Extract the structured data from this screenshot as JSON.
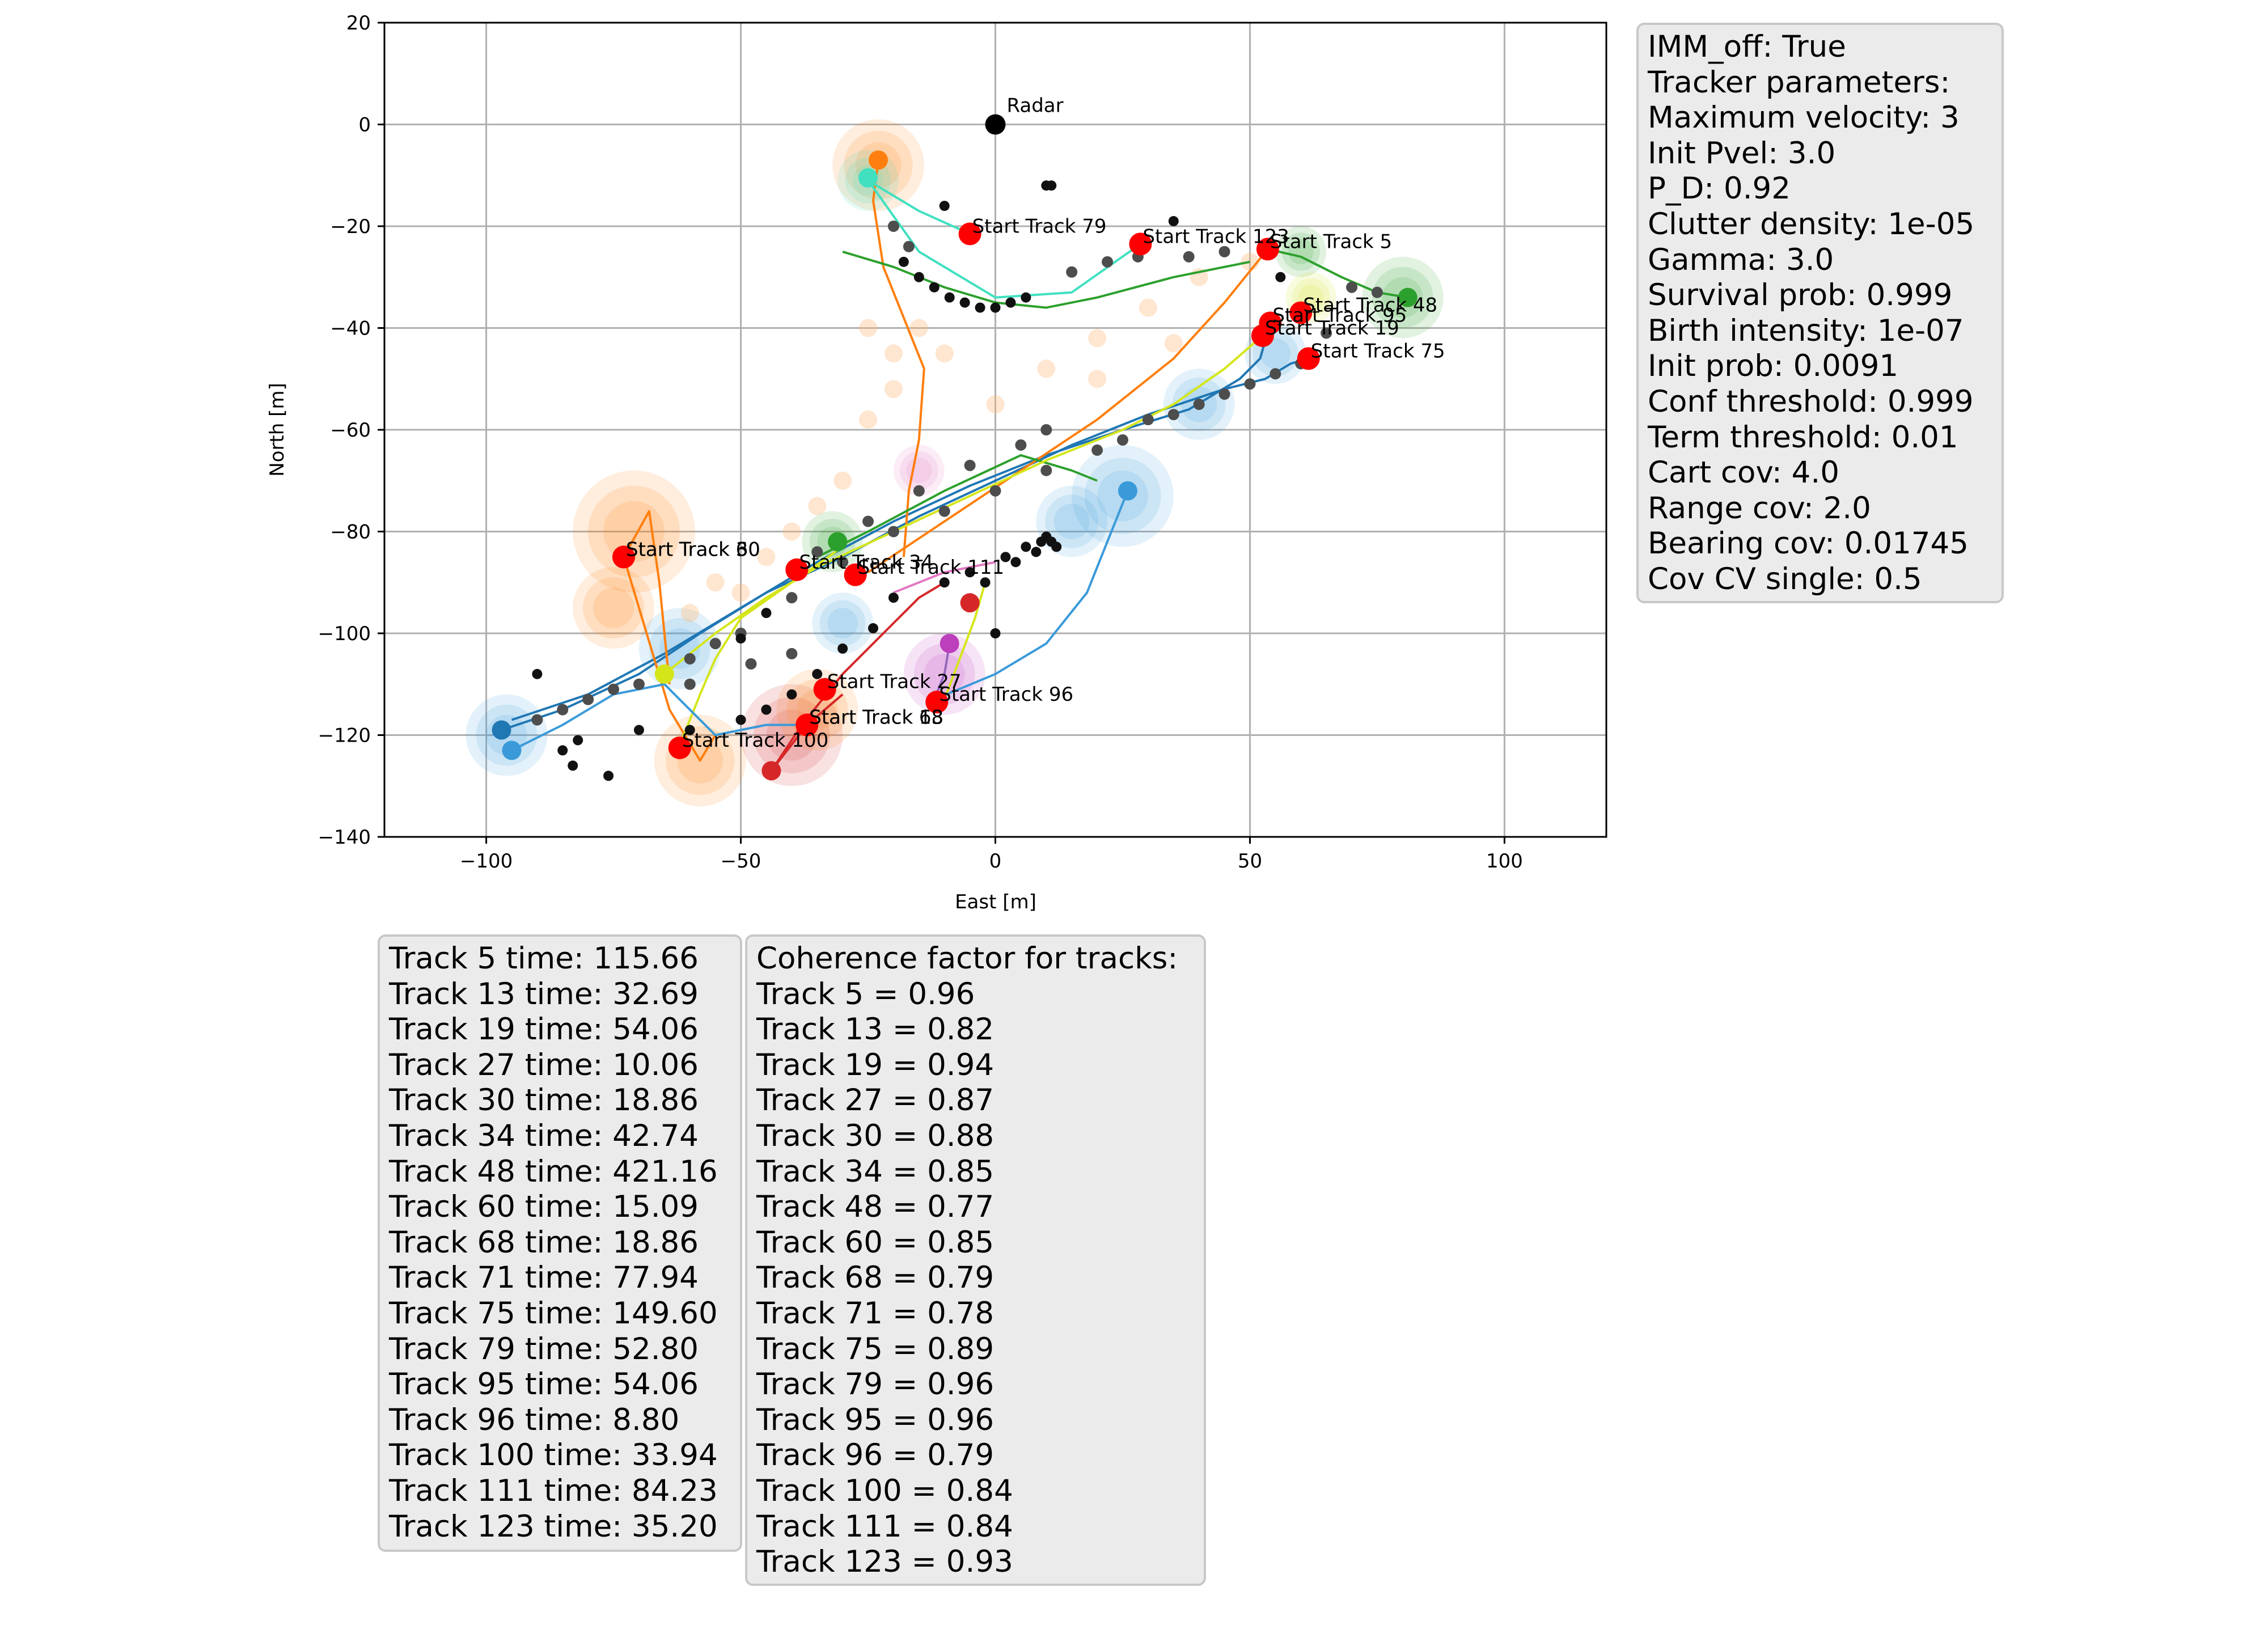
{
  "chart_data": {
    "type": "scatter",
    "title": "",
    "xlabel": "East [m]",
    "ylabel": "North [m]",
    "xlim": [
      -120,
      120
    ],
    "ylim": [
      -140,
      20
    ],
    "grid": true,
    "xticks": [
      -100,
      -50,
      0,
      50,
      100
    ],
    "yticks": [
      20,
      0,
      -20,
      -40,
      -60,
      -80,
      -100,
      -120,
      -140
    ],
    "xtick_labels": [
      "−100",
      "−50",
      "0",
      "50",
      "100"
    ],
    "ytick_labels": [
      "20",
      "0",
      "−20",
      "−40",
      "−60",
      "−80",
      "−100",
      "−120",
      "−140"
    ],
    "radar": {
      "label": "Radar",
      "x": 0,
      "y": 0,
      "color": "#000000"
    },
    "start_markers": [
      {
        "label": "Start Track 79",
        "x": -5,
        "y": -21.5
      },
      {
        "label": "Start Track 123",
        "x": 28.5,
        "y": -23.5
      },
      {
        "label": "Start Track 5",
        "x": 53.5,
        "y": -24.5
      },
      {
        "label": "Start Track 48",
        "x": 60,
        "y": -37
      },
      {
        "label": "Start Track 95",
        "x": 54,
        "y": -39
      },
      {
        "label": "Start Track 19",
        "x": 52.5,
        "y": -41.5
      },
      {
        "label": "Start Track 75",
        "x": 61.5,
        "y": -46
      },
      {
        "label": "Start Track 60",
        "x": -73,
        "y": -85
      },
      {
        "label": "Start Track 30",
        "x": -73,
        "y": -85
      },
      {
        "label": "Start Track 34",
        "x": -39,
        "y": -87.5
      },
      {
        "label": "Start Track 111",
        "x": -27.5,
        "y": -88.5
      },
      {
        "label": "Start Track 27",
        "x": -33.5,
        "y": -111
      },
      {
        "label": "Start Track 96",
        "x": -11.5,
        "y": -113.5
      },
      {
        "label": "Start Track 13",
        "x": -37,
        "y": -118
      },
      {
        "label": "Start Track 68",
        "x": -37,
        "y": -118
      },
      {
        "label": "Start Track 100",
        "x": -62,
        "y": -122.5
      }
    ],
    "tracks": [
      {
        "color": "#1f77b4",
        "points": [
          [
            -97,
            -119
          ],
          [
            -85,
            -115
          ],
          [
            -70,
            -108
          ],
          [
            -58,
            -100
          ],
          [
            -45,
            -92
          ],
          [
            -30,
            -85
          ],
          [
            -15,
            -77
          ],
          [
            0,
            -70
          ],
          [
            15,
            -63
          ],
          [
            30,
            -57
          ],
          [
            45,
            -52
          ],
          [
            53,
            -50
          ],
          [
            58,
            -47
          ],
          [
            61.5,
            -46
          ]
        ]
      },
      {
        "color": "#1f77b4",
        "points": [
          [
            -95,
            -117
          ],
          [
            -80,
            -112
          ],
          [
            -65,
            -104
          ],
          [
            -50,
            -95
          ],
          [
            -35,
            -86
          ],
          [
            -20,
            -78
          ],
          [
            -5,
            -71
          ],
          [
            10,
            -65
          ],
          [
            25,
            -60
          ],
          [
            38,
            -56
          ],
          [
            48,
            -50
          ],
          [
            52,
            -46
          ],
          [
            54,
            -39
          ]
        ]
      },
      {
        "color": "#ff7f0e",
        "points": [
          [
            -23,
            -7
          ],
          [
            -24,
            -15
          ],
          [
            -22,
            -28
          ],
          [
            -18,
            -38
          ],
          [
            -14,
            -48
          ],
          [
            -15,
            -62
          ],
          [
            -17,
            -72
          ],
          [
            -18,
            -85
          ]
        ]
      },
      {
        "color": "#ff7f0e",
        "points": [
          [
            -25,
            -88
          ],
          [
            -10,
            -78
          ],
          [
            5,
            -68
          ],
          [
            20,
            -58
          ],
          [
            35,
            -46
          ],
          [
            45,
            -35
          ],
          [
            53.5,
            -24.5
          ]
        ]
      },
      {
        "color": "#ff7f0e",
        "points": [
          [
            -73,
            -85
          ],
          [
            -70,
            -95
          ],
          [
            -67,
            -105
          ],
          [
            -64,
            -115
          ],
          [
            -58,
            -125
          ],
          [
            -55,
            -120
          ]
        ]
      },
      {
        "color": "#ff7f0e",
        "points": [
          [
            -73,
            -85
          ],
          [
            -68,
            -76
          ],
          [
            -66,
            -90
          ],
          [
            -64,
            -110
          ]
        ]
      },
      {
        "color": "#2ca02c",
        "points": [
          [
            53.5,
            -24.5
          ],
          [
            60,
            -26
          ],
          [
            68,
            -30
          ],
          [
            75,
            -33
          ],
          [
            81,
            -34
          ]
        ]
      },
      {
        "color": "#2ca02c",
        "points": [
          [
            -30,
            -25
          ],
          [
            -20,
            -28
          ],
          [
            -10,
            -32
          ],
          [
            0,
            -35
          ],
          [
            10,
            -36
          ],
          [
            20,
            -34
          ],
          [
            35,
            -30
          ],
          [
            50,
            -27
          ]
        ]
      },
      {
        "color": "#2ca02c",
        "points": [
          [
            -35,
            -85
          ],
          [
            -25,
            -80
          ],
          [
            -10,
            -72
          ],
          [
            5,
            -65
          ],
          [
            15,
            -68
          ],
          [
            20,
            -70
          ]
        ]
      },
      {
        "color": "#d62728",
        "points": [
          [
            -44,
            -127
          ],
          [
            -38,
            -118
          ],
          [
            -30,
            -108
          ],
          [
            -20,
            -98
          ],
          [
            -15,
            -93
          ],
          [
            -10,
            -90
          ]
        ]
      },
      {
        "color": "#d62728",
        "points": [
          [
            -44,
            -127
          ],
          [
            -37,
            -118
          ],
          [
            -30,
            -112
          ]
        ]
      },
      {
        "color": "#9467bd",
        "points": [
          [
            -12,
            -113
          ],
          [
            -10,
            -108
          ],
          [
            -9,
            -102
          ]
        ]
      },
      {
        "color": "#d4e61a",
        "points": [
          [
            -65,
            -108
          ],
          [
            -55,
            -100
          ],
          [
            -45,
            -93
          ],
          [
            -35,
            -87
          ],
          [
            -20,
            -80
          ],
          [
            -5,
            -73
          ],
          [
            10,
            -66
          ],
          [
            25,
            -60
          ],
          [
            35,
            -55
          ],
          [
            45,
            -48
          ],
          [
            52.5,
            -41.5
          ]
        ]
      },
      {
        "color": "#d4e61a",
        "points": [
          [
            -62,
            -122
          ],
          [
            -58,
            -112
          ],
          [
            -55,
            -105
          ],
          [
            -50,
            -97
          ],
          [
            -40,
            -90
          ],
          [
            -30,
            -83
          ]
        ]
      },
      {
        "color": "#d4e61a",
        "points": [
          [
            -10,
            -113
          ],
          [
            -7,
            -105
          ],
          [
            -4,
            -97
          ],
          [
            -2,
            -90
          ]
        ]
      },
      {
        "color": "#40e0c0",
        "points": [
          [
            -5,
            -21.5
          ],
          [
            -15,
            -17
          ],
          [
            -25,
            -11
          ],
          [
            -15,
            -25
          ],
          [
            0,
            -34
          ],
          [
            15,
            -33
          ],
          [
            28.5,
            -23.5
          ]
        ]
      },
      {
        "color": "#3a9ad9",
        "points": [
          [
            -12,
            -113
          ],
          [
            0,
            -108
          ],
          [
            10,
            -102
          ],
          [
            18,
            -92
          ],
          [
            22,
            -82
          ],
          [
            26,
            -72
          ]
        ]
      },
      {
        "color": "#3a9ad9",
        "points": [
          [
            -95,
            -123
          ],
          [
            -85,
            -118
          ],
          [
            -75,
            -112
          ],
          [
            -65,
            -110
          ],
          [
            -55,
            -120
          ],
          [
            -45,
            -118
          ],
          [
            -37,
            -118
          ]
        ]
      },
      {
        "color": "#e377c2",
        "points": [
          [
            -20,
            -92
          ],
          [
            -10,
            -88
          ],
          [
            0,
            -86
          ]
        ]
      }
    ],
    "track_endpoints": [
      {
        "x": -23,
        "y": -7,
        "color": "#ff7f0e"
      },
      {
        "x": -25,
        "y": -10.5,
        "color": "#40e0c0"
      },
      {
        "x": 81,
        "y": -34,
        "color": "#2ca02c"
      },
      {
        "x": 26,
        "y": -72,
        "color": "#3a9ad9"
      },
      {
        "x": -9,
        "y": -102,
        "color": "#bc3fbc"
      },
      {
        "x": -97,
        "y": -119,
        "color": "#1f77b4"
      },
      {
        "x": -95,
        "y": -123,
        "color": "#3a9ad9"
      },
      {
        "x": -44,
        "y": -127,
        "color": "#d62728"
      },
      {
        "x": -5,
        "y": -94,
        "color": "#d62728"
      },
      {
        "x": -31,
        "y": -82,
        "color": "#2ca02c"
      },
      {
        "x": -65,
        "y": -108,
        "color": "#d4e61a"
      }
    ],
    "uncertainty_regions": [
      {
        "x": -23,
        "y": -8,
        "r": 9,
        "color": "#ff7f0e"
      },
      {
        "x": -25,
        "y": -11,
        "r": 6,
        "color": "#40e0c0"
      },
      {
        "x": 80,
        "y": -34,
        "r": 8,
        "color": "#2ca02c"
      },
      {
        "x": 60,
        "y": -25,
        "r": 5,
        "color": "#2ca02c"
      },
      {
        "x": -71,
        "y": -80,
        "r": 12,
        "color": "#ff7f0e"
      },
      {
        "x": -75,
        "y": -95,
        "r": 8,
        "color": "#ff7f0e"
      },
      {
        "x": -96,
        "y": -120,
        "r": 8,
        "color": "#3a9ad9"
      },
      {
        "x": -62,
        "y": -103,
        "r": 8,
        "color": "#3a9ad9"
      },
      {
        "x": -40,
        "y": -120,
        "r": 10,
        "color": "#d62728"
      },
      {
        "x": -58,
        "y": -125,
        "r": 9,
        "color": "#ff7f0e"
      },
      {
        "x": -10,
        "y": -108,
        "r": 8,
        "color": "#bc3fbc"
      },
      {
        "x": 25,
        "y": -73,
        "r": 10,
        "color": "#3a9ad9"
      },
      {
        "x": 15,
        "y": -78,
        "r": 7,
        "color": "#3a9ad9"
      },
      {
        "x": -32,
        "y": -82,
        "r": 6,
        "color": "#2ca02c"
      },
      {
        "x": -15,
        "y": -68,
        "r": 5,
        "color": "#e377c2"
      },
      {
        "x": 40,
        "y": -55,
        "r": 7,
        "color": "#3a9ad9"
      },
      {
        "x": 55,
        "y": -45,
        "r": 6,
        "color": "#3a9ad9"
      },
      {
        "x": -35,
        "y": -115,
        "r": 8,
        "color": "#ff7f0e"
      },
      {
        "x": -30,
        "y": -98,
        "r": 6,
        "color": "#3a9ad9"
      },
      {
        "x": 62,
        "y": -34,
        "r": 5,
        "color": "#d4e61a"
      }
    ],
    "measurements_black": [
      [
        -18,
        -27
      ],
      [
        -15,
        -30
      ],
      [
        -12,
        -32
      ],
      [
        -9,
        -34
      ],
      [
        -6,
        -35
      ],
      [
        -3,
        -36
      ],
      [
        0,
        -36
      ],
      [
        3,
        -35
      ],
      [
        6,
        -34
      ],
      [
        10,
        -12
      ],
      [
        11,
        -12
      ],
      [
        -10,
        -16
      ],
      [
        35,
        -19
      ],
      [
        56,
        -30
      ],
      [
        -10,
        -90
      ],
      [
        -5,
        -88
      ],
      [
        2,
        -85
      ],
      [
        6,
        -83
      ],
      [
        9,
        -82
      ],
      [
        10,
        -81
      ],
      [
        11,
        -82
      ],
      [
        12,
        -83
      ],
      [
        8,
        -84
      ],
      [
        4,
        -86
      ],
      [
        -2,
        -90
      ],
      [
        -20,
        -93
      ],
      [
        -24,
        -99
      ],
      [
        -30,
        -103
      ],
      [
        -35,
        -108
      ],
      [
        -40,
        -112
      ],
      [
        -45,
        -115
      ],
      [
        -50,
        -117
      ],
      [
        -60,
        -119
      ],
      [
        -70,
        -119
      ],
      [
        -82,
        -121
      ],
      [
        -85,
        -123
      ],
      [
        -83,
        -126
      ],
      [
        -76,
        -128
      ],
      [
        -50,
        -101
      ],
      [
        -45,
        -96
      ],
      [
        -90,
        -108
      ],
      [
        0,
        -100
      ]
    ],
    "measurements_gray": [
      [
        -20,
        -20
      ],
      [
        -17,
        -24
      ],
      [
        15,
        -29
      ],
      [
        22,
        -27
      ],
      [
        28,
        -26
      ],
      [
        38,
        -26
      ],
      [
        45,
        -25
      ],
      [
        70,
        -32
      ],
      [
        75,
        -33
      ],
      [
        30,
        -58
      ],
      [
        35,
        -57
      ],
      [
        40,
        -55
      ],
      [
        45,
        -53
      ],
      [
        50,
        -51
      ],
      [
        55,
        -49
      ],
      [
        60,
        -47
      ],
      [
        65,
        -41
      ],
      [
        20,
        -64
      ],
      [
        10,
        -68
      ],
      [
        0,
        -72
      ],
      [
        -10,
        -76
      ],
      [
        -20,
        -80
      ],
      [
        -30,
        -86
      ],
      [
        -40,
        -93
      ],
      [
        -50,
        -100
      ],
      [
        -55,
        -102
      ],
      [
        -60,
        -105
      ],
      [
        -65,
        -108
      ],
      [
        -70,
        -110
      ],
      [
        -75,
        -111
      ],
      [
        -80,
        -113
      ],
      [
        -85,
        -115
      ],
      [
        -90,
        -117
      ],
      [
        10,
        -60
      ],
      [
        5,
        -63
      ],
      [
        -5,
        -67
      ],
      [
        -15,
        -72
      ],
      [
        -25,
        -78
      ],
      [
        -35,
        -84
      ],
      [
        25,
        -62
      ],
      [
        -60,
        -110
      ],
      [
        -48,
        -106
      ],
      [
        -40,
        -104
      ]
    ],
    "measurements_light": [
      [
        -20,
        -45
      ],
      [
        -25,
        -58
      ],
      [
        -30,
        -70
      ],
      [
        -35,
        -75
      ],
      [
        -15,
        -40
      ],
      [
        -10,
        -45
      ],
      [
        0,
        -55
      ],
      [
        10,
        -48
      ],
      [
        20,
        -42
      ],
      [
        30,
        -36
      ],
      [
        40,
        -30
      ],
      [
        50,
        -27
      ],
      [
        -55,
        -90
      ],
      [
        -45,
        -85
      ],
      [
        -40,
        -80
      ],
      [
        -50,
        -92
      ],
      [
        -60,
        -96
      ],
      [
        -20,
        -52
      ],
      [
        -25,
        -40
      ],
      [
        20,
        -50
      ],
      [
        35,
        -43
      ]
    ]
  },
  "params_box": {
    "lines": [
      "IMM_off: True",
      "Tracker parameters:",
      "Maximum velocity: 3",
      "Init Pvel: 3.0",
      "P_D: 0.92",
      "Clutter density: 1e-05",
      "Gamma: 3.0",
      "Survival prob: 0.999",
      "Birth intensity: 1e-07",
      "Init prob: 0.0091",
      "Conf threshold: 0.999",
      "Term threshold: 0.01",
      "Cart cov: 4.0",
      "Range cov: 2.0",
      "Bearing cov: 0.01745",
      "Cov CV single: 0.5"
    ]
  },
  "times_box": {
    "lines": [
      "Track 5 time: 115.66",
      "Track 13 time: 32.69",
      "Track 19 time: 54.06",
      "Track 27 time: 10.06",
      "Track 30 time: 18.86",
      "Track 34 time: 42.74",
      "Track 48 time: 421.16",
      "Track 60 time: 15.09",
      "Track 68 time: 18.86",
      "Track 71 time: 77.94",
      "Track 75 time: 149.60",
      "Track 79 time: 52.80",
      "Track 95 time: 54.06",
      "Track 96 time: 8.80",
      "Track 100 time: 33.94",
      "Track 111 time: 84.23",
      "Track 123 time: 35.20"
    ]
  },
  "coherence_box": {
    "lines": [
      "Coherence factor for tracks:",
      "Track 5 = 0.96",
      "Track 13 = 0.82",
      "Track 19 = 0.94",
      "Track 27 = 0.87",
      "Track 30 = 0.88",
      "Track 34 = 0.85",
      "Track 48 = 0.77",
      "Track 60 = 0.85",
      "Track 68 = 0.79",
      "Track 71 = 0.78",
      "Track 75 = 0.89",
      "Track 79 = 0.96",
      "Track 95 = 0.96",
      "Track 96 = 0.79",
      "Track 100 = 0.84",
      "Track 111 = 0.84",
      "Track 123 = 0.93"
    ]
  }
}
